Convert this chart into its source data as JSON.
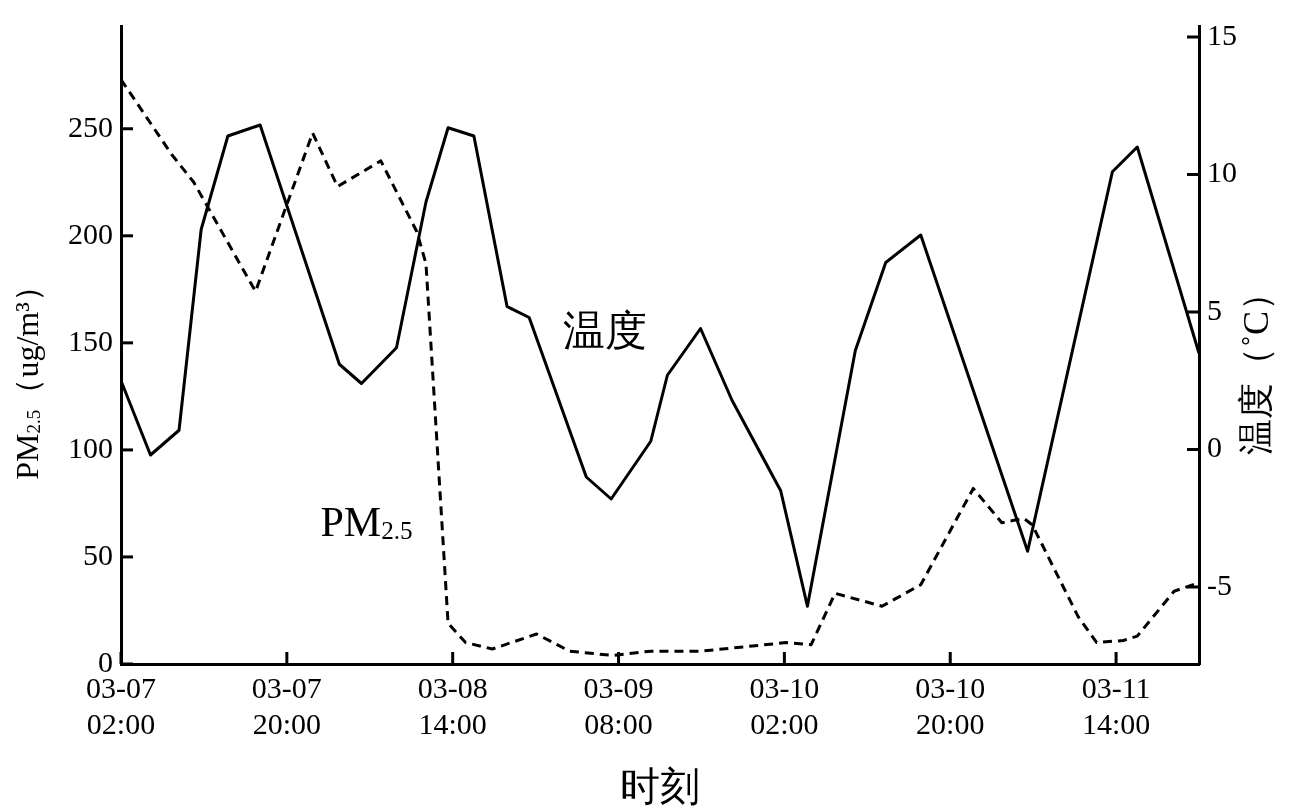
{
  "chart_data": {
    "type": "line",
    "xlabel": "时刻",
    "ylabel": "PM$_{2.5}$（ug/m³）",
    "y2label": "温度（˚C）",
    "xlim": [
      "--03-07T02:00",
      "--03-11T23:00"
    ],
    "xticks": [
      {
        "value": "--03-07T02:00",
        "label": "03-07\n02:00"
      },
      {
        "value": "--03-07T20:00",
        "label": "03-07\n20:00"
      },
      {
        "value": "--03-08T14:00",
        "label": "03-08\n14:00"
      },
      {
        "value": "--03-09T08:00",
        "label": "03-09\n08:00"
      },
      {
        "value": "--03-10T02:00",
        "label": "03-10\n02:00"
      },
      {
        "value": "--03-10T20:00",
        "label": "03-10\n20:00"
      },
      {
        "value": "--03-11T14:00",
        "label": "03-11\n14:00"
      }
    ],
    "ylim": [
      0,
      298
    ],
    "yticks": [
      0,
      50,
      100,
      150,
      200,
      250
    ],
    "y2lim": [
      -7.8,
      15.4
    ],
    "y2ticks": [
      -5,
      0,
      5,
      10,
      15
    ],
    "grid": false,
    "legend": false,
    "marker": "none",
    "series": [
      {
        "name": "温度",
        "color": "#000000",
        "axis": "y2",
        "line_style": "solid",
        "x": [
          "--03-07T02:00",
          "--03-07T05:12",
          "--03-07T08:18",
          "--03-07T10:42",
          "--03-07T13:36",
          "--03-07T17:06",
          "--03-08T01:42",
          "--03-08T04:06",
          "--03-08T07:54",
          "--03-08T11:06",
          "--03-08T13:30",
          "--03-08T16:18",
          "--03-08T19:54",
          "--03-08T22:18",
          "--03-09T04:30",
          "--03-09T07:12",
          "--03-09T11:30",
          "--03-09T13:18",
          "--03-09T16:54",
          "--03-09T20:18",
          "--03-10T01:36",
          "--03-10T04:30",
          "--03-10T09:42",
          "--03-10T13:00",
          "--03-10T16:48",
          "--03-11T04:24",
          "--03-11T13:36",
          "--03-11T16:18",
          "--03-11T23:00"
        ],
        "values": [
          2.5,
          -0.2,
          0.7,
          8,
          11.4,
          11.8,
          3.1,
          2.4,
          3.7,
          9,
          11.7,
          11.4,
          5.2,
          4.8,
          -1,
          -1.8,
          0.3,
          2.7,
          4.4,
          1.8,
          -1.5,
          -5.7,
          3.6,
          6.8,
          7.8,
          -3.7,
          10.1,
          11,
          3.5
        ]
      },
      {
        "name": "PM$_{2.5}$",
        "color": "#000000",
        "axis": "y",
        "line_style": "dashed",
        "x": [
          "--03-07T02:00",
          "--03-07T07:30",
          "--03-07T09:54",
          "--03-07T16:36",
          "--03-07T22:48",
          "--03-08T01:30",
          "--03-08T06:12",
          "--03-08T10:06",
          "--03-08T11:06",
          "--03-08T13:30",
          "--03-08T15:24",
          "--03-08T18:18",
          "--03-08T23:06",
          "--03-09T02:42",
          "--03-09T07:18",
          "--03-09T11:30",
          "--03-09T17:00",
          "--03-10T02:12",
          "--03-10T04:54",
          "--03-10T07:30",
          "--03-10T12:36",
          "--03-10T16:48",
          "--03-10T22:30",
          "--03-11T01:36",
          "--03-11T04:00",
          "--03-11T04:54",
          "--03-11T09:54",
          "--03-11T11:54",
          "--03-11T14:48",
          "--03-11T16:18",
          "--03-11T20:18",
          "--03-11T23:00"
        ],
        "values": [
          273,
          238,
          225,
          174,
          248,
          223,
          235,
          202,
          187,
          19,
          10,
          7,
          14,
          6,
          4,
          6,
          6,
          10,
          9,
          33,
          27,
          37,
          82,
          66,
          68,
          65,
          22,
          10,
          11,
          13,
          34,
          38
        ]
      }
    ]
  }
}
